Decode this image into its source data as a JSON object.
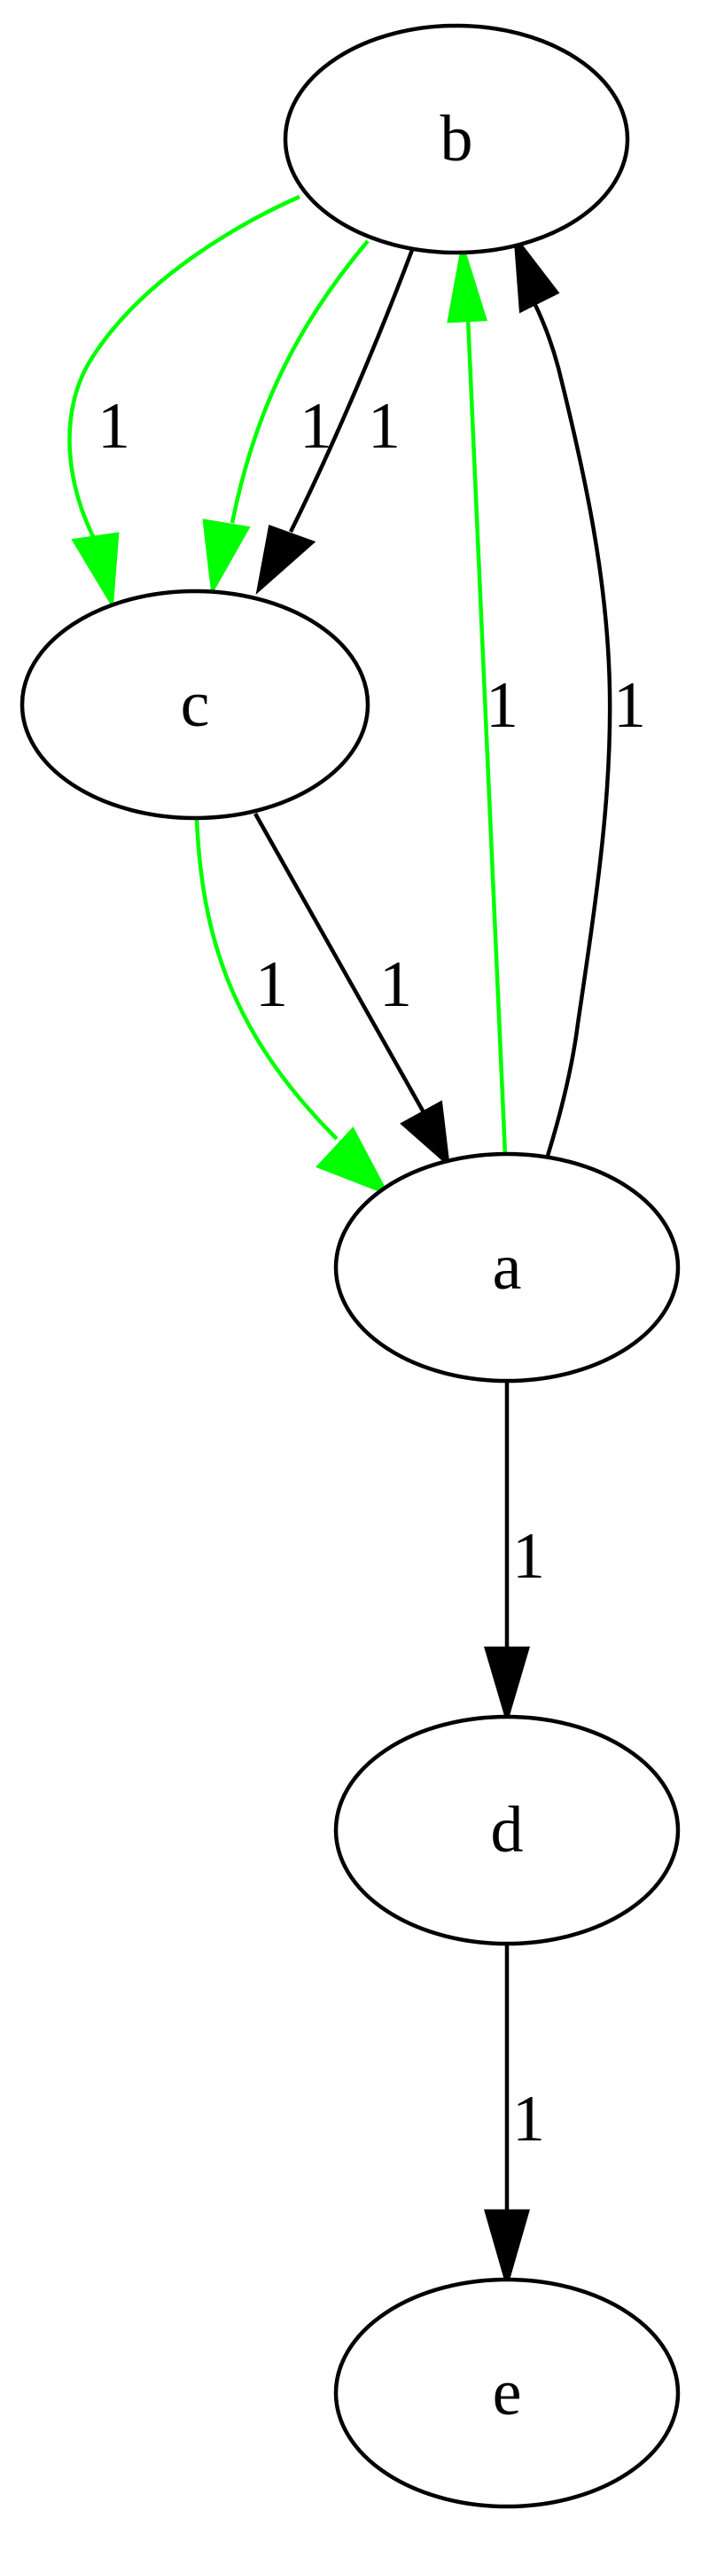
{
  "colors": {
    "default_edge": "#000000",
    "highlight_edge": "#00ff00",
    "node_stroke": "#000000",
    "background": "#ffffff"
  },
  "nodes": [
    {
      "id": "b",
      "label": "b"
    },
    {
      "id": "c",
      "label": "c"
    },
    {
      "id": "a",
      "label": "a"
    },
    {
      "id": "d",
      "label": "d"
    },
    {
      "id": "e",
      "label": "e"
    }
  ],
  "edges": [
    {
      "from": "b",
      "to": "c",
      "label": "1",
      "color": "#00ff00"
    },
    {
      "from": "b",
      "to": "c",
      "label": "1",
      "color": "#00ff00"
    },
    {
      "from": "b",
      "to": "c",
      "label": "1",
      "color": "#000000"
    },
    {
      "from": "c",
      "to": "a",
      "label": "1",
      "color": "#00ff00"
    },
    {
      "from": "c",
      "to": "a",
      "label": "1",
      "color": "#000000"
    },
    {
      "from": "a",
      "to": "b",
      "label": "1",
      "color": "#00ff00"
    },
    {
      "from": "a",
      "to": "b",
      "label": "1",
      "color": "#000000"
    },
    {
      "from": "a",
      "to": "d",
      "label": "1",
      "color": "#000000"
    },
    {
      "from": "d",
      "to": "e",
      "label": "1",
      "color": "#000000"
    }
  ]
}
